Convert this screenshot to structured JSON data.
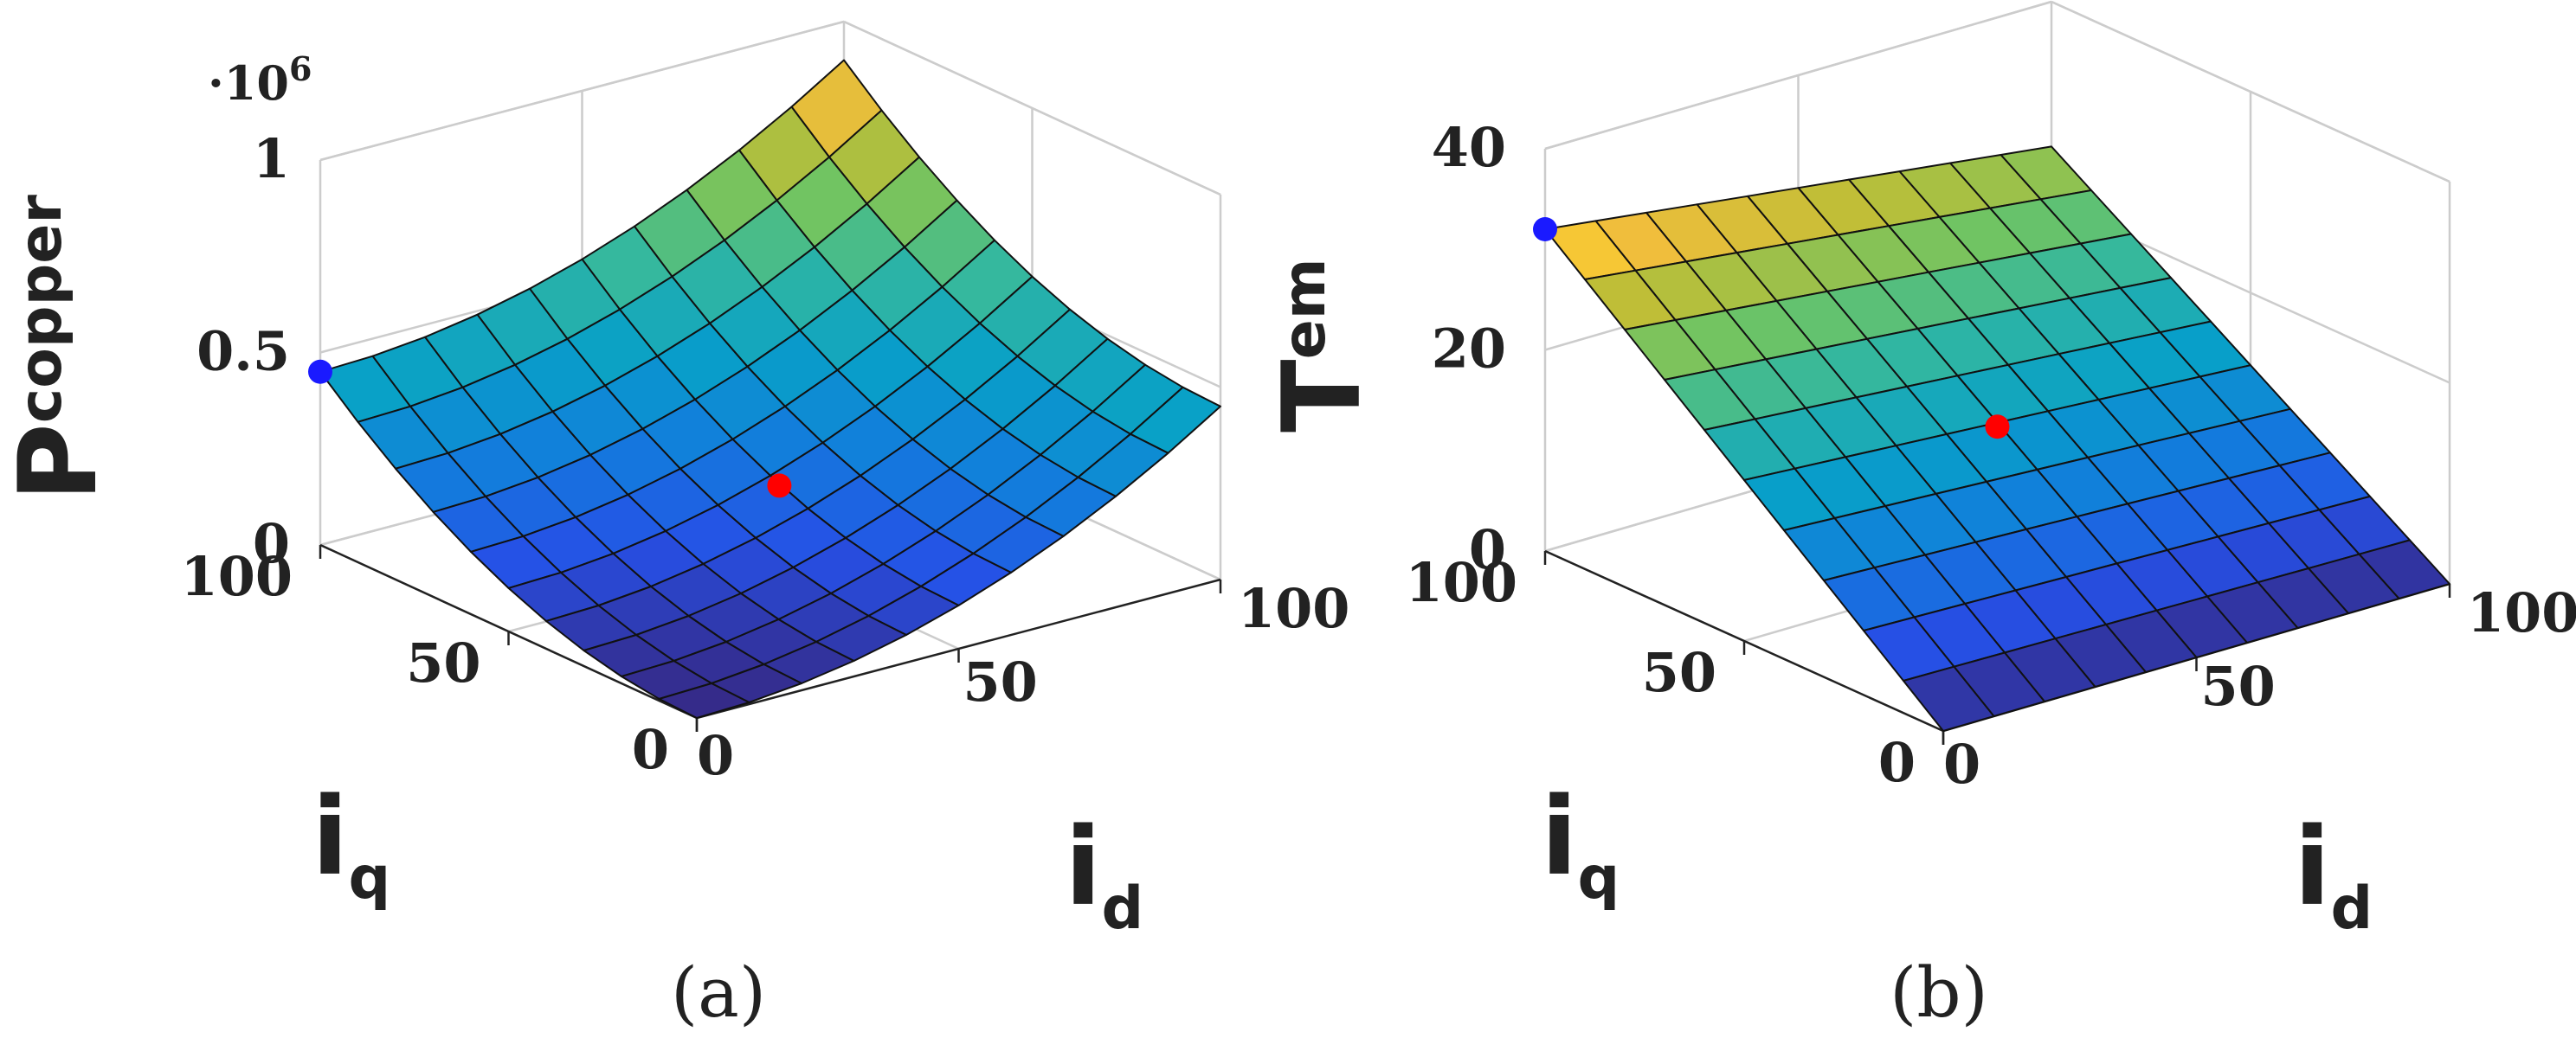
{
  "chart_data": [
    {
      "id": "a",
      "type": "surface",
      "caption": "(a)",
      "zlabel": "P",
      "zlabel_sub": "copper",
      "xlabel": "i",
      "xlabel_sub": "d",
      "ylabel": "i",
      "ylabel_sub": "q",
      "xlim": [
        0,
        100
      ],
      "ylim": [
        0,
        100
      ],
      "zlim": [
        0,
        1
      ],
      "z_multiplier": "·10",
      "z_multiplier_exp": "6",
      "x_ticks": [
        "0",
        "50",
        "100"
      ],
      "y_ticks": [
        "0",
        "50",
        "100"
      ],
      "z_ticks": [
        "0",
        "0.5",
        "1"
      ],
      "z_tick_values": [
        0,
        0.5,
        1
      ],
      "grid": true,
      "colormap": "parula",
      "formula": "z = 4.5e-5 * (id^2 + iq^2)  (×10^6)",
      "mesh_points": 11,
      "markers": [
        {
          "label": "",
          "x": 0,
          "y": 100,
          "z": 0.45,
          "color": "#1a1aff"
        },
        {
          "label": "",
          "x": 51,
          "y": 49,
          "z": 0.2,
          "color": "#ff0000"
        }
      ]
    },
    {
      "id": "b",
      "type": "surface",
      "caption": "(b)",
      "zlabel": "T",
      "zlabel_sub": "em",
      "xlabel": "i",
      "xlabel_sub": "d",
      "ylabel": "i",
      "ylabel_sub": "q",
      "xlim": [
        0,
        100
      ],
      "ylim": [
        0,
        100
      ],
      "zlim": [
        0,
        40
      ],
      "x_ticks": [
        "0",
        "50",
        "100"
      ],
      "y_ticks": [
        "0",
        "50",
        "100"
      ],
      "z_ticks": [
        "0",
        "20",
        "40"
      ],
      "z_tick_values": [
        0,
        20,
        40
      ],
      "grid": true,
      "colormap": "parula",
      "formula": "z = 0.32 * iq * (1 - 0.2 * id/100)",
      "mesh_points": 11,
      "markers": [
        {
          "label": "",
          "x": 0,
          "y": 100,
          "z": 32,
          "color": "#1a1aff"
        },
        {
          "label": "",
          "x": 50,
          "y": 50,
          "z": 14,
          "color": "#ff0000"
        }
      ]
    }
  ]
}
